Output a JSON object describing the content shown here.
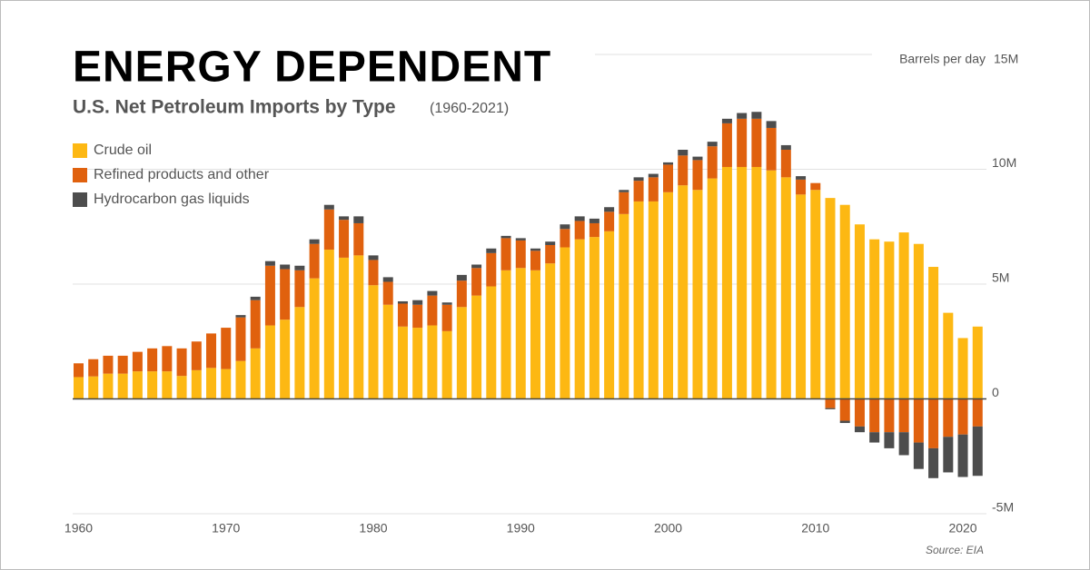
{
  "chart_data": {
    "type": "bar",
    "stacked": true,
    "title": "ENERGY DEPENDENT",
    "subtitle": "U.S. Net Petroleum Imports by Type",
    "subtitle_note": "(1960-2021)",
    "y_axis_label": "Barrels per day",
    "source": "Source: EIA",
    "x": [
      1960,
      1961,
      1962,
      1963,
      1964,
      1965,
      1966,
      1967,
      1968,
      1969,
      1970,
      1971,
      1972,
      1973,
      1974,
      1975,
      1976,
      1977,
      1978,
      1979,
      1980,
      1981,
      1982,
      1983,
      1984,
      1985,
      1986,
      1987,
      1988,
      1989,
      1990,
      1991,
      1992,
      1993,
      1994,
      1995,
      1996,
      1997,
      1998,
      1999,
      2000,
      2001,
      2002,
      2003,
      2004,
      2005,
      2006,
      2007,
      2008,
      2009,
      2010,
      2011,
      2012,
      2013,
      2014,
      2015,
      2016,
      2017,
      2018,
      2019,
      2020,
      2021
    ],
    "xlim": [
      1959.6,
      2021.6
    ],
    "xticks": [
      1960,
      1970,
      1980,
      1990,
      2000,
      2010,
      2020
    ],
    "ylim": [
      -5,
      15
    ],
    "yticks": [
      {
        "value": -5,
        "label": "-5M"
      },
      0,
      {
        "value": 5,
        "label": "5M"
      },
      {
        "value": 10,
        "label": "10M"
      },
      {
        "value": 15,
        "label": "15M"
      }
    ],
    "grid": true,
    "legend": "top-left",
    "series": [
      {
        "name": "Crude oil",
        "color": "#fdb813",
        "values": [
          0.95,
          0.98,
          1.1,
          1.1,
          1.2,
          1.2,
          1.2,
          1.0,
          1.25,
          1.35,
          1.3,
          1.65,
          2.2,
          3.2,
          3.45,
          4.0,
          5.25,
          6.5,
          6.15,
          6.25,
          4.95,
          4.1,
          3.15,
          3.1,
          3.2,
          2.95,
          4.0,
          4.5,
          4.9,
          5.6,
          5.7,
          5.6,
          5.9,
          6.6,
          6.95,
          7.05,
          7.3,
          8.05,
          8.6,
          8.6,
          9.0,
          9.3,
          9.1,
          9.6,
          10.1,
          10.1,
          10.1,
          9.95,
          9.65,
          8.9,
          9.1,
          8.75,
          8.45,
          7.6,
          6.95,
          6.85,
          7.25,
          6.75,
          5.75,
          3.75,
          2.65,
          3.15
        ]
      },
      {
        "name": "Refined products and other",
        "color": "#e0610e",
        "values": [
          0.6,
          0.75,
          0.78,
          0.78,
          0.85,
          1.0,
          1.1,
          1.2,
          1.25,
          1.5,
          1.8,
          1.9,
          2.1,
          2.6,
          2.2,
          1.6,
          1.5,
          1.75,
          1.65,
          1.4,
          1.1,
          1.0,
          1.0,
          1.0,
          1.3,
          1.15,
          1.15,
          1.2,
          1.45,
          1.4,
          1.2,
          0.85,
          0.8,
          0.8,
          0.8,
          0.6,
          0.85,
          0.95,
          0.9,
          1.05,
          1.2,
          1.3,
          1.3,
          1.4,
          1.9,
          2.1,
          2.1,
          1.85,
          1.2,
          0.65,
          0.3,
          -0.4,
          -0.95,
          -1.2,
          -1.45,
          -1.45,
          -1.45,
          -1.9,
          -2.15,
          -1.65,
          -1.55,
          -1.2
        ]
      },
      {
        "name": "Hydrocarbon gas liquids",
        "color": "#4d4d4d",
        "values": [
          0,
          0,
          0,
          0,
          0,
          0,
          0,
          0,
          0,
          0,
          0,
          0.1,
          0.15,
          0.2,
          0.2,
          0.2,
          0.2,
          0.2,
          0.15,
          0.3,
          0.2,
          0.2,
          0.1,
          0.2,
          0.2,
          0.1,
          0.25,
          0.15,
          0.2,
          0.1,
          0.1,
          0.1,
          0.15,
          0.2,
          0.2,
          0.2,
          0.2,
          0.1,
          0.15,
          0.15,
          0.1,
          0.25,
          0.15,
          0.2,
          0.2,
          0.25,
          0.3,
          0.3,
          0.2,
          0.15,
          0,
          -0.05,
          -0.1,
          -0.25,
          -0.45,
          -0.7,
          -1.0,
          -1.15,
          -1.3,
          -1.55,
          -1.85,
          -2.15
        ]
      }
    ]
  }
}
